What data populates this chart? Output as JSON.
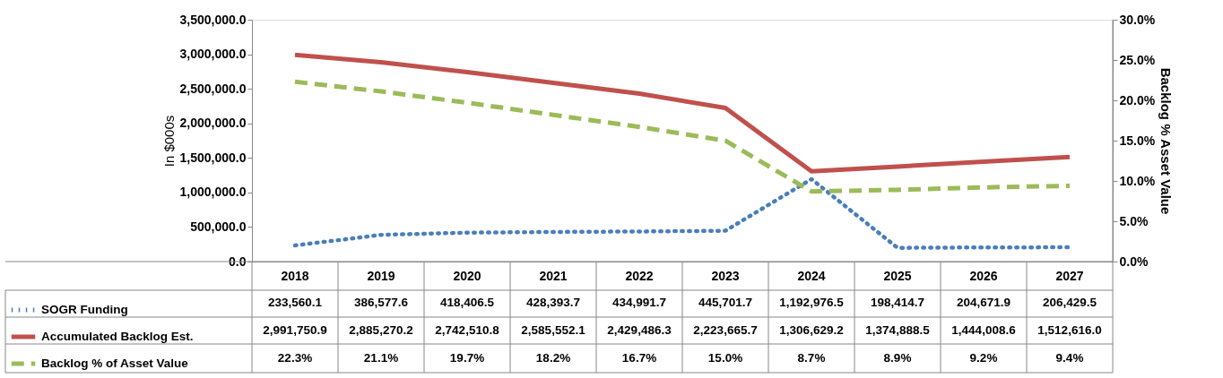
{
  "chart_data": {
    "type": "line",
    "categories": [
      "2018",
      "2019",
      "2020",
      "2021",
      "2022",
      "2023",
      "2024",
      "2025",
      "2026",
      "2027"
    ],
    "ylabel": "In $000s",
    "y2label": "Backlog % Asset Value",
    "ylim": [
      0,
      3500000
    ],
    "yticks": [
      {
        "value": 0,
        "label": "0.0"
      },
      {
        "value": 500000,
        "label": "500,000.0"
      },
      {
        "value": 1000000,
        "label": "1,000,000.0"
      },
      {
        "value": 1500000,
        "label": "1,500,000.0"
      },
      {
        "value": 2000000,
        "label": "2,000,000.0"
      },
      {
        "value": 2500000,
        "label": "2,500,000.0"
      },
      {
        "value": 3000000,
        "label": "3,000,000.0"
      },
      {
        "value": 3500000,
        "label": "3,500,000.0"
      }
    ],
    "y2lim": [
      0,
      30
    ],
    "y2ticks": [
      {
        "value": 0,
        "label": "0.0%"
      },
      {
        "value": 5,
        "label": "5.0%"
      },
      {
        "value": 10,
        "label": "10.0%"
      },
      {
        "value": 15,
        "label": "15.0%"
      },
      {
        "value": 20,
        "label": "20.0%"
      },
      {
        "value": 25,
        "label": "25.0%"
      },
      {
        "value": 30,
        "label": "30.0%"
      }
    ],
    "grid": false,
    "legend": "bottom left",
    "series": [
      {
        "name": "SOGR Funding",
        "color": "#4a7ebb",
        "line_style": "dotted",
        "values": [
          233560.1,
          386577.6,
          418406.5,
          428393.7,
          434991.7,
          445701.7,
          1192976.5,
          198414.7,
          204671.9,
          206429.5
        ],
        "value_labels": [
          "233,560.1",
          "386,577.6",
          "418,406.5",
          "428,393.7",
          "434,991.7",
          "445,701.7",
          "1,192,976.5",
          "198,414.7",
          "204,671.9",
          "206,429.5"
        ]
      },
      {
        "name": "Accumulated Backlog Est.",
        "color": "#c0504d",
        "line_style": "solid",
        "values": [
          2991750.9,
          2885270.2,
          2742510.8,
          2585552.1,
          2429486.3,
          2223665.7,
          1306629.2,
          1374888.5,
          1444008.6,
          1512616.0
        ],
        "value_labels": [
          "2,991,750.9",
          "2,885,270.2",
          "2,742,510.8",
          "2,585,552.1",
          "2,429,486.3",
          "2,223,665.7",
          "1,306,629.2",
          "1,374,888.5",
          "1,444,008.6",
          "1,512,616.0"
        ]
      },
      {
        "name": "Backlog % of Asset Value",
        "color": "#9bbb59",
        "line_style": "dashed",
        "axis": "y2",
        "values": [
          22.3,
          21.1,
          19.7,
          18.2,
          16.7,
          15.0,
          8.7,
          8.9,
          9.2,
          9.4
        ],
        "value_labels": [
          "22.3%",
          "21.1%",
          "19.7%",
          "18.2%",
          "16.7%",
          "15.0%",
          "8.7%",
          "8.9%",
          "9.2%",
          "9.4%"
        ]
      }
    ]
  }
}
